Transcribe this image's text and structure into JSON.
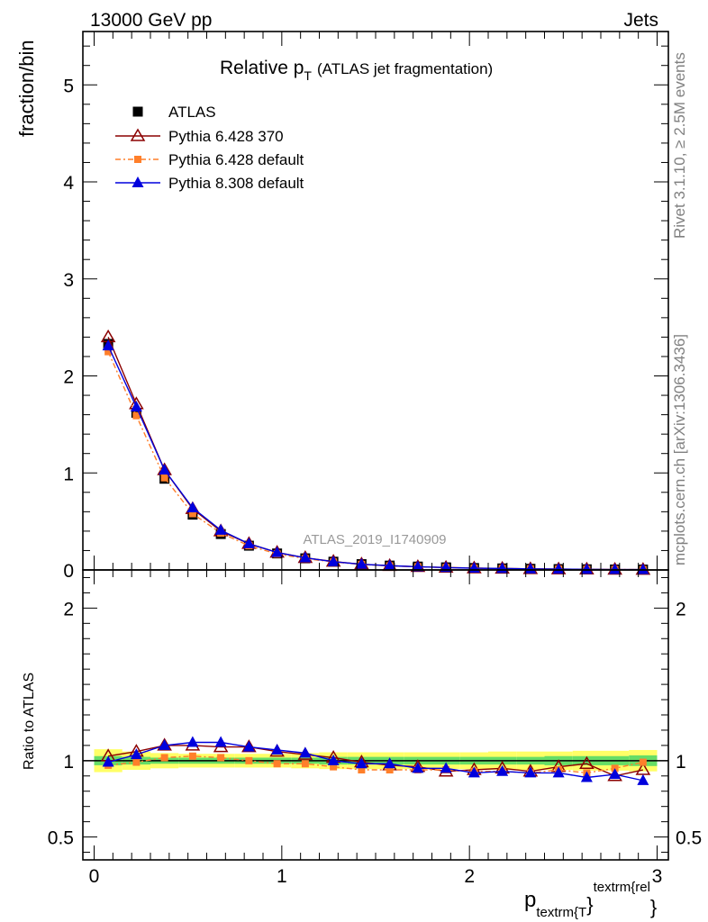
{
  "header": {
    "left": "13000 GeV pp",
    "right": "Jets"
  },
  "side_text": {
    "rivet": "Rivet 3.1.10, ≥ 2.5M events",
    "mcplots": "mcplots.cern.ch [arXiv:1306.3436]"
  },
  "chart_data": {
    "type": "line",
    "title_main": "Relative p",
    "title_sub": "T",
    "title_rest": "(ATLAS jet fragmentation)",
    "watermark": "ATLAS_2019_I1740909",
    "ylabel": "fraction/bin",
    "ratio_ylabel": "Ratio to ATLAS",
    "xlabel_main": "p",
    "xlabel_sub": "textrm{T",
    "xlabel_brace": "}",
    "xlabel_sup": "textrm{rel",
    "xlabel_brace2": "}",
    "xlim": [
      -0.06,
      3.06
    ],
    "ylim": [
      0,
      5.55
    ],
    "ratio_ylim": [
      0.35,
      2.25
    ],
    "x_ticks": [
      {
        "value": 0,
        "label": "0"
      },
      {
        "value": 1,
        "label": "1"
      },
      {
        "value": 2,
        "label": "2"
      },
      {
        "value": 3,
        "label": "3"
      }
    ],
    "y_ticks": [
      {
        "value": 0,
        "label": "0"
      },
      {
        "value": 1,
        "label": "1"
      },
      {
        "value": 2,
        "label": "2"
      },
      {
        "value": 3,
        "label": "3"
      },
      {
        "value": 4,
        "label": "4"
      },
      {
        "value": 5,
        "label": "5"
      }
    ],
    "ratio_ticks": [
      {
        "value": 0.5,
        "label": "0.5"
      },
      {
        "value": 1,
        "label": "1"
      },
      {
        "value": 2,
        "label": "2"
      }
    ],
    "x": [
      0.075,
      0.225,
      0.375,
      0.525,
      0.675,
      0.825,
      0.975,
      1.125,
      1.275,
      1.425,
      1.575,
      1.725,
      1.875,
      2.025,
      2.175,
      2.325,
      2.475,
      2.625,
      2.775,
      2.925
    ],
    "series": [
      {
        "name": "ATLAS",
        "color": "#000000",
        "marker": "square",
        "values": [
          2.33,
          1.62,
          0.94,
          0.57,
          0.37,
          0.25,
          0.17,
          0.12,
          0.085,
          0.06,
          0.045,
          0.035,
          0.027,
          0.02,
          0.016,
          0.012,
          0.009,
          0.007,
          0.005,
          0.004
        ],
        "ratio": [
          1.0,
          1.0,
          1.0,
          1.0,
          1.0,
          1.0,
          1.0,
          1.0,
          1.0,
          1.0,
          1.0,
          1.0,
          1.0,
          1.0,
          1.0,
          1.0,
          1.0,
          1.0,
          1.0,
          1.0
        ]
      },
      {
        "name": "Pythia 6.428 370",
        "color": "#8b0000",
        "marker": "open-triangle",
        "values": [
          2.4,
          1.71,
          1.03,
          0.63,
          0.4,
          0.27,
          0.18,
          0.125,
          0.087,
          0.059,
          0.043,
          0.033,
          0.025,
          0.019,
          0.015,
          0.011,
          0.0085,
          0.0068,
          0.0045,
          0.0037
        ],
        "ratio": [
          1.03,
          1.06,
          1.1,
          1.1,
          1.09,
          1.09,
          1.06,
          1.04,
          1.02,
          0.99,
          0.97,
          0.96,
          0.93,
          0.94,
          0.95,
          0.93,
          0.96,
          0.98,
          0.9,
          0.94
        ]
      },
      {
        "name": "Pythia 6.428 default",
        "color": "#ff7f2a",
        "marker": "square-small",
        "dash": "6,3,2,3",
        "values": [
          2.25,
          1.59,
          0.95,
          0.58,
          0.38,
          0.25,
          0.165,
          0.117,
          0.082,
          0.057,
          0.042,
          0.033,
          0.025,
          0.019,
          0.015,
          0.011,
          0.0085,
          0.0065,
          0.0048,
          0.004
        ],
        "ratio": [
          0.97,
          0.99,
          1.02,
          1.03,
          1.02,
          1.0,
          0.98,
          0.98,
          0.96,
          0.94,
          0.94,
          0.94,
          0.94,
          0.93,
          0.93,
          0.92,
          0.94,
          0.92,
          0.95,
          0.99
        ]
      },
      {
        "name": "Pythia 8.308 default",
        "color": "#0000dd",
        "marker": "triangle",
        "values": [
          2.31,
          1.68,
          1.03,
          0.64,
          0.41,
          0.27,
          0.18,
          0.125,
          0.085,
          0.059,
          0.044,
          0.033,
          0.025,
          0.018,
          0.015,
          0.011,
          0.0083,
          0.0062,
          0.0045,
          0.0035
        ],
        "ratio": [
          0.99,
          1.04,
          1.1,
          1.12,
          1.12,
          1.09,
          1.07,
          1.05,
          1.0,
          0.98,
          0.98,
          0.95,
          0.95,
          0.92,
          0.93,
          0.92,
          0.92,
          0.89,
          0.91,
          0.87
        ]
      }
    ],
    "bands": {
      "inner_color": "#66dd66",
      "outer_color": "#ffff66",
      "inner": [
        0.03,
        0.025,
        0.02,
        0.02,
        0.02,
        0.02,
        0.02,
        0.02,
        0.025,
        0.025,
        0.025,
        0.025,
        0.025,
        0.025,
        0.025,
        0.025,
        0.03,
        0.03,
        0.03,
        0.035
      ],
      "outer": [
        0.075,
        0.06,
        0.05,
        0.045,
        0.045,
        0.045,
        0.045,
        0.05,
        0.055,
        0.055,
        0.055,
        0.055,
        0.055,
        0.055,
        0.06,
        0.06,
        0.06,
        0.065,
        0.065,
        0.07
      ]
    }
  }
}
